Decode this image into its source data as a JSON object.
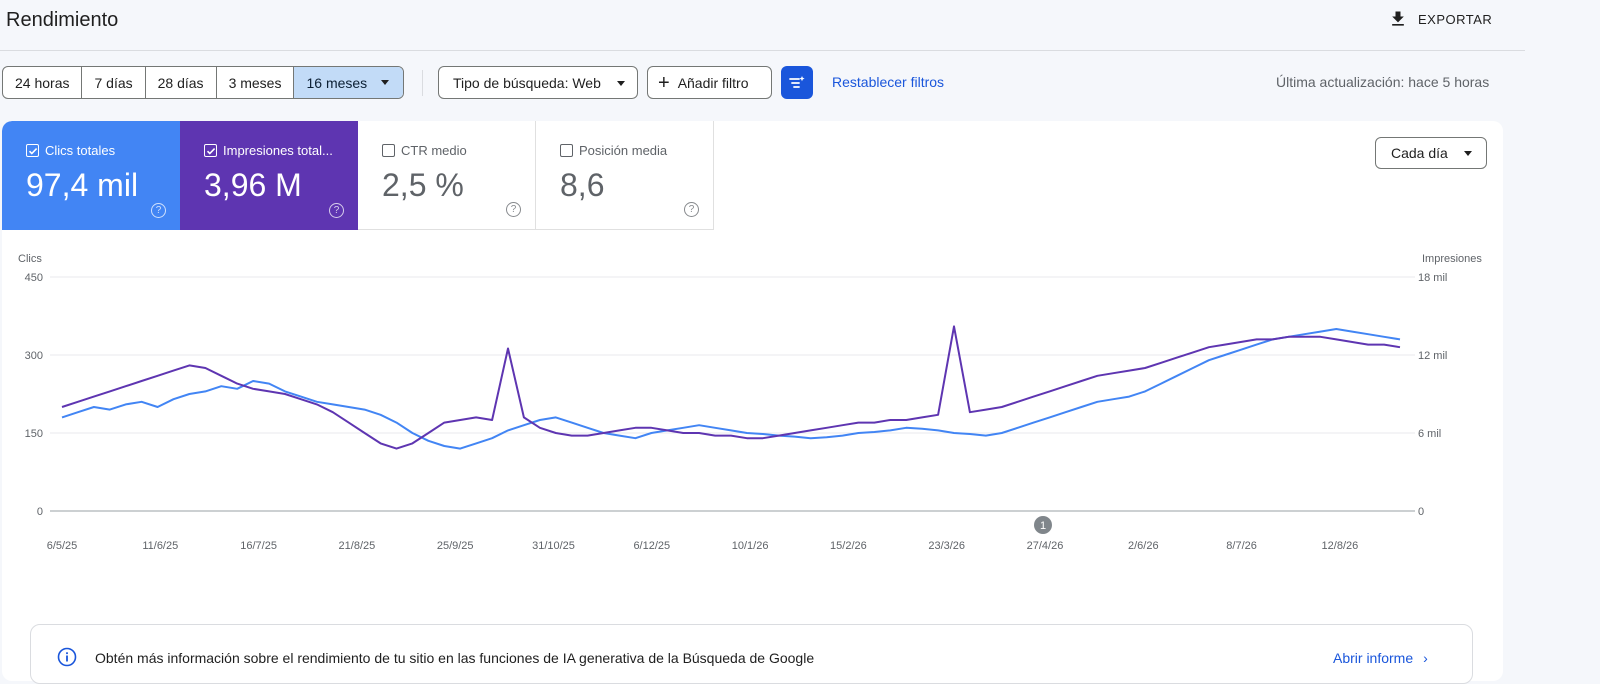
{
  "header": {
    "title": "Rendimiento",
    "export_label": "EXPORTAR"
  },
  "toolbar": {
    "ranges": [
      "24 horas",
      "7 días",
      "28 días",
      "3 meses",
      "16 meses"
    ],
    "active_range": "16 meses",
    "search_type": "Tipo de búsqueda: Web",
    "add_filter": "Añadir filtro",
    "reset_filters": "Restablecer filtros",
    "last_update": "Última actualización: hace 5 horas"
  },
  "metrics": [
    {
      "label": "Clics totales",
      "value": "97,4 mil",
      "checked": true,
      "color": "#4285f4"
    },
    {
      "label": "Impresiones total...",
      "value": "3,96 M",
      "checked": true,
      "color": "#5e35b1"
    },
    {
      "label": "CTR medio",
      "value": "2,5 %",
      "checked": false
    },
    {
      "label": "Posición media",
      "value": "8,6",
      "checked": false
    }
  ],
  "granularity": "Cada día",
  "chart_data": {
    "type": "line",
    "left_axis_label": "Clics",
    "right_axis_label": "Impresiones",
    "left_ticks": [
      "450",
      "300",
      "150",
      "0"
    ],
    "right_ticks": [
      "18 mil",
      "12 mil",
      "6 mil",
      "0"
    ],
    "ylim_left": [
      0,
      450
    ],
    "ylim_right": [
      0,
      18000
    ],
    "x_labels": [
      "6/5/25",
      "11/6/25",
      "16/7/25",
      "21/8/25",
      "25/9/25",
      "31/10/25",
      "6/12/25",
      "10/1/26",
      "15/2/26",
      "23/3/26",
      "27/4/26",
      "2/6/26",
      "8/7/26",
      "12/8/26"
    ],
    "annotation": "1",
    "grid": true,
    "series": [
      {
        "name": "Clics totales",
        "axis": "left",
        "color": "#4285f4",
        "values": [
          180,
          190,
          200,
          195,
          205,
          210,
          200,
          215,
          225,
          230,
          240,
          235,
          250,
          245,
          230,
          220,
          210,
          205,
          200,
          195,
          185,
          170,
          150,
          135,
          125,
          120,
          130,
          140,
          155,
          165,
          175,
          180,
          170,
          160,
          150,
          145,
          140,
          150,
          155,
          160,
          165,
          160,
          155,
          150,
          148,
          145,
          143,
          140,
          142,
          145,
          150,
          152,
          155,
          160,
          158,
          155,
          150,
          148,
          145,
          150,
          160,
          170,
          180,
          190,
          200,
          210,
          215,
          220,
          230,
          245,
          260,
          275,
          290,
          300,
          310,
          320,
          330,
          335,
          340,
          345,
          350,
          345,
          340,
          335,
          330
        ]
      },
      {
        "name": "Impresiones totales",
        "axis": "right",
        "color": "#5e35b1",
        "values": [
          8000,
          8400,
          8800,
          9200,
          9600,
          10000,
          10400,
          10800,
          11200,
          11000,
          10400,
          9800,
          9400,
          9200,
          9000,
          8600,
          8200,
          7600,
          6800,
          6000,
          5200,
          4800,
          5200,
          6000,
          6800,
          7000,
          7200,
          7000,
          12500,
          7200,
          6400,
          6000,
          5800,
          5800,
          6000,
          6200,
          6400,
          6400,
          6200,
          6000,
          6000,
          5800,
          5800,
          5600,
          5600,
          5800,
          6000,
          6200,
          6400,
          6600,
          6800,
          6800,
          7000,
          7000,
          7200,
          7400,
          14200,
          7600,
          7800,
          8000,
          8400,
          8800,
          9200,
          9600,
          10000,
          10400,
          10600,
          10800,
          11000,
          11400,
          11800,
          12200,
          12600,
          12800,
          13000,
          13200,
          13200,
          13400,
          13400,
          13400,
          13200,
          13000,
          12800,
          12800,
          12600
        ]
      }
    ]
  },
  "banner": {
    "text": "Obtén más información sobre el rendimiento de tu sitio en las funciones de IA generativa de la Búsqueda de Google",
    "link": "Abrir informe"
  }
}
